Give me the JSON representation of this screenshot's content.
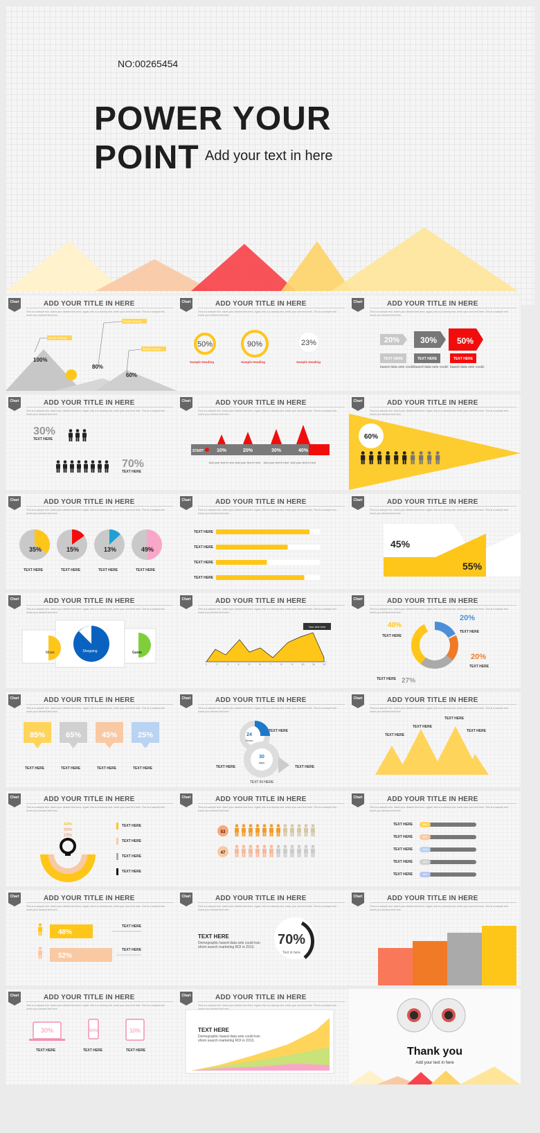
{
  "cover": {
    "number": "NO:00265454",
    "title_line1": "POWER YOUR",
    "title_line2": "POINT",
    "subtitle": "Add your text in here",
    "colors": [
      "#fff1c9",
      "#f9c9a4",
      "#f6444a",
      "#fdd46a",
      "#fee59a"
    ]
  },
  "common": {
    "tag": "Chart",
    "title": "ADD YOUR TITLE IN HERE",
    "desc": "This is a sample text. Insert your desired text here. Again, this is a dummy text, enter your own text here. This is a sample text. Insert your desired text here."
  },
  "slides": {
    "s1": {
      "v1": "100%",
      "v2": "80%",
      "v3": "60%",
      "heading": "Sample Heading"
    },
    "s2": {
      "v1": "50%",
      "v2": "90%",
      "v3": "23%",
      "heading": "Sample Heading"
    },
    "s3": {
      "v1": "20%",
      "v2": "30%",
      "v3": "50%",
      "label": "TEXT HERE",
      "cap": "based data sets could."
    },
    "s4": {
      "v1": "30%",
      "v2": "70%",
      "label": "TEXT HERE"
    },
    "s5": {
      "start": "START",
      "v1": "10%",
      "v2": "20%",
      "v3": "30%",
      "v4": "40%",
      "cap": "Add your text in here"
    },
    "s6": {
      "v1": "60%"
    },
    "s7": {
      "values": [
        "35%",
        "15%",
        "13%",
        "49%"
      ],
      "label": "TEXT HERE"
    },
    "s8": {
      "label": "TEXT HERE",
      "bars": [
        0.9,
        0.69,
        0.49,
        0.85
      ]
    },
    "s9": {
      "v1": "45%",
      "v2": "55%"
    },
    "s10": {
      "l1": "Music",
      "l2": "Shopping",
      "l3": "Game"
    },
    "s11": {
      "callout": "Your text here",
      "xticks": [
        "1",
        "2",
        "3",
        "4",
        "5",
        "6",
        "7",
        "8",
        "9",
        "10",
        "11",
        "12"
      ]
    },
    "s12": {
      "v1": "40%",
      "v2": "20%",
      "v3": "20%",
      "v4": "27%",
      "label": "TEXT HERE"
    },
    "s13": {
      "values": [
        "85%",
        "65%",
        "45%",
        "25%"
      ],
      "label": "TEXT HERE"
    },
    "s14": {
      "v1": "24",
      "u1": "Hours",
      "v2": "30",
      "u2": "days",
      "label": "TEXT HERE",
      "cap": "TEXT IN HERE"
    },
    "s15": {
      "label": "TEXT HERE"
    },
    "s16": {
      "v1": "43%",
      "v2": "30%",
      "v3": "19%",
      "label": "TEXT HERE"
    },
    "s17": {
      "v1": "53",
      "v2": "47"
    },
    "s18": {
      "label": "TEXT HERE",
      "values": [
        "60%",
        "58%",
        "11%",
        "25%",
        "36%"
      ]
    },
    "s19": {
      "v1": "48%",
      "v2": "52%",
      "label": "TEXT HERE"
    },
    "s20": {
      "heading": "TEXT HERE",
      "body": "Demographic based data sets could transform search marketing ROI in 2013.",
      "v1": "70%",
      "cap": "Text in here"
    },
    "s21": {
      "values": [
        "50%",
        "60%",
        "75%",
        "85%"
      ]
    },
    "s22": {
      "v1": "30%",
      "v2": "60%",
      "v3": "10%",
      "label": "TEXT HERE"
    },
    "s23": {
      "heading": "TEXT HERE",
      "body": "Demographic based data sets could transform search marketing ROI in 2013."
    },
    "s24": {
      "title": "Thank you",
      "sub": "Add your text in here"
    }
  }
}
